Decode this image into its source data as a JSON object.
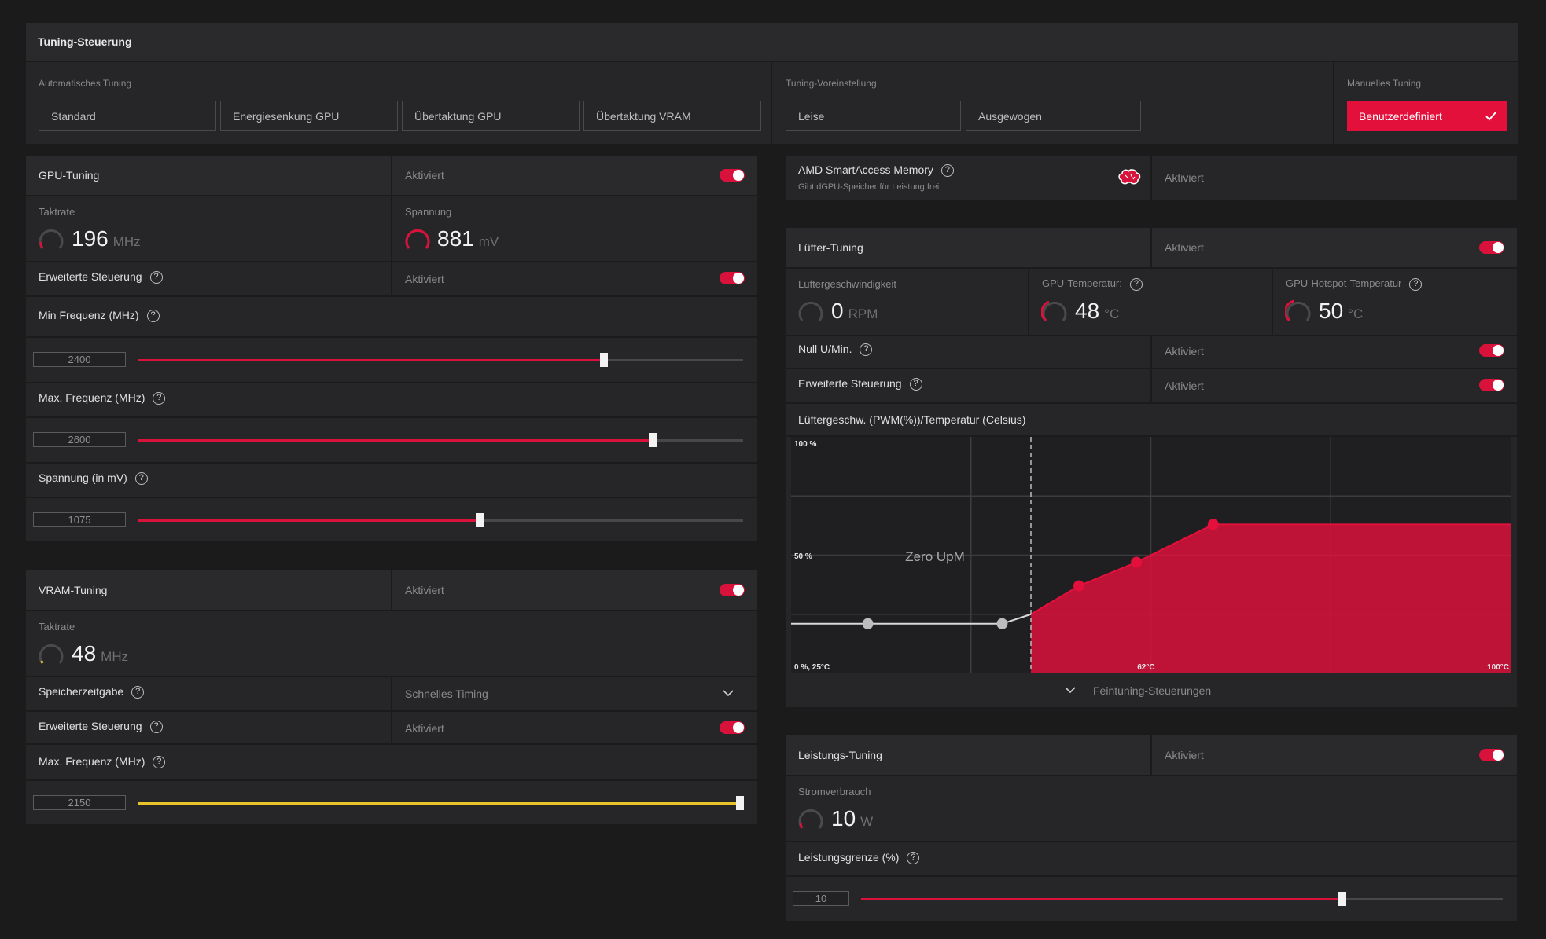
{
  "header": {
    "title": "Tuning-Steuerung"
  },
  "tuning": {
    "auto_label": "Automatisches Tuning",
    "auto_buttons": [
      "Standard",
      "Energiesenkung GPU",
      "Übertaktung GPU",
      "Übertaktung VRAM"
    ],
    "preset_label": "Tuning-Voreinstellung",
    "preset_buttons": [
      "Leise",
      "Ausgewogen"
    ],
    "manual_label": "Manuelles Tuning",
    "manual_button": "Benutzerdefiniert"
  },
  "gpu": {
    "title": "GPU-Tuning",
    "status": "Aktiviert",
    "clock_label": "Taktrate",
    "clock_value": "196",
    "clock_unit": "MHz",
    "voltage_label": "Spannung",
    "voltage_value": "881",
    "voltage_unit": "mV",
    "advanced_label": "Erweiterte Steuerung",
    "advanced_status": "Aktiviert",
    "min_freq_label": "Min Frequenz (MHz)",
    "min_freq_value": "2400",
    "min_freq_fraction": 0.77,
    "max_freq_label": "Max. Frequenz (MHz)",
    "max_freq_value": "2600",
    "max_freq_fraction": 0.85,
    "volt_slider_label": "Spannung (in mV)",
    "volt_slider_value": "1075",
    "volt_slider_fraction": 0.565
  },
  "vram": {
    "title": "VRAM-Tuning",
    "status": "Aktiviert",
    "clock_label": "Taktrate",
    "clock_value": "48",
    "clock_unit": "MHz",
    "timing_label": "Speicherzeitgabe",
    "timing_value": "Schnelles Timing",
    "advanced_label": "Erweiterte Steuerung",
    "advanced_status": "Aktiviert",
    "max_freq_label": "Max. Frequenz (MHz)",
    "max_freq_value": "2150",
    "max_freq_fraction": 1.0
  },
  "sam": {
    "title": "AMD SmartAccess Memory",
    "subtitle": "Gibt dGPU-Speicher für Leistung frei",
    "status": "Aktiviert"
  },
  "fan": {
    "title": "Lüfter-Tuning",
    "status": "Aktiviert",
    "speed_label": "Lüftergeschwindigkeit",
    "speed_value": "0",
    "speed_unit": "RPM",
    "temp_label": "GPU-Temperatur:",
    "temp_value": "48",
    "temp_unit": "°C",
    "hotspot_label": "GPU-Hotspot-Temperatur",
    "hotspot_value": "50",
    "hotspot_unit": "°C",
    "zero_rpm_label": "Null U/Min.",
    "zero_rpm_status": "Aktiviert",
    "advanced_label": "Erweiterte Steuerung",
    "advanced_status": "Aktiviert",
    "curve_title": "Lüftergeschw. (PWM(%))/Temperatur (Celsius)",
    "fine_tune_label": "Feintuning-Steuerungen"
  },
  "chart_data": {
    "type": "area",
    "y_tick_labels": [
      "100 %",
      "50 %",
      "0 %, 25°C"
    ],
    "x_tick_labels": [
      "62°C",
      "100°C"
    ],
    "annotation": "Zero UpM",
    "xlim": [
      25,
      100
    ],
    "ylim": [
      0,
      100
    ],
    "zero_rpm_threshold": 50,
    "points": [
      {
        "x": 33,
        "y": 21,
        "enabled": false
      },
      {
        "x": 47,
        "y": 21,
        "enabled": false
      },
      {
        "x": 55,
        "y": 37,
        "enabled": true
      },
      {
        "x": 61,
        "y": 47,
        "enabled": true
      },
      {
        "x": 69,
        "y": 63,
        "enabled": true
      }
    ],
    "accent_color": "#e3103c",
    "grid": true
  },
  "power": {
    "title": "Leistungs-Tuning",
    "status": "Aktiviert",
    "consumption_label": "Stromverbrauch",
    "consumption_value": "10",
    "consumption_unit": "W",
    "limit_label": "Leistungsgrenze (%)",
    "limit_value": "10",
    "limit_fraction": 0.75
  },
  "colors": {
    "accent": "#e3103c",
    "vram_slider": "#e8c32a",
    "panel": "#262628",
    "background": "#1b1b1c"
  }
}
